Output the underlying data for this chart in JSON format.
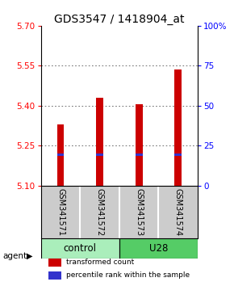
{
  "title": "GDS3547 / 1418904_at",
  "samples": [
    "GSM341571",
    "GSM341572",
    "GSM341573",
    "GSM341574"
  ],
  "bar_values": [
    5.33,
    5.43,
    5.405,
    5.535
  ],
  "bar_base": 5.1,
  "blue_marker_values": [
    5.215,
    5.215,
    5.215,
    5.215
  ],
  "ylim": [
    5.1,
    5.7
  ],
  "yticks_left": [
    5.1,
    5.25,
    5.4,
    5.55,
    5.7
  ],
  "yticks_right": [
    0,
    25,
    50,
    75,
    100
  ],
  "yticks_right_labels": [
    "0",
    "25",
    "50",
    "75",
    "100%"
  ],
  "bar_color": "#cc0000",
  "blue_color": "#3333cc",
  "groups": [
    {
      "label": "control",
      "indices": [
        0,
        1
      ],
      "color": "#aaeebb"
    },
    {
      "label": "U28",
      "indices": [
        2,
        3
      ],
      "color": "#55cc66"
    }
  ],
  "legend_items": [
    {
      "color": "#cc0000",
      "label": "transformed count"
    },
    {
      "color": "#3333cc",
      "label": "percentile rank within the sample"
    }
  ],
  "grid_color": "#555555",
  "bar_width": 0.18,
  "title_fontsize": 10,
  "tick_fontsize": 7.5,
  "sample_fontsize": 7,
  "group_fontsize": 8.5
}
